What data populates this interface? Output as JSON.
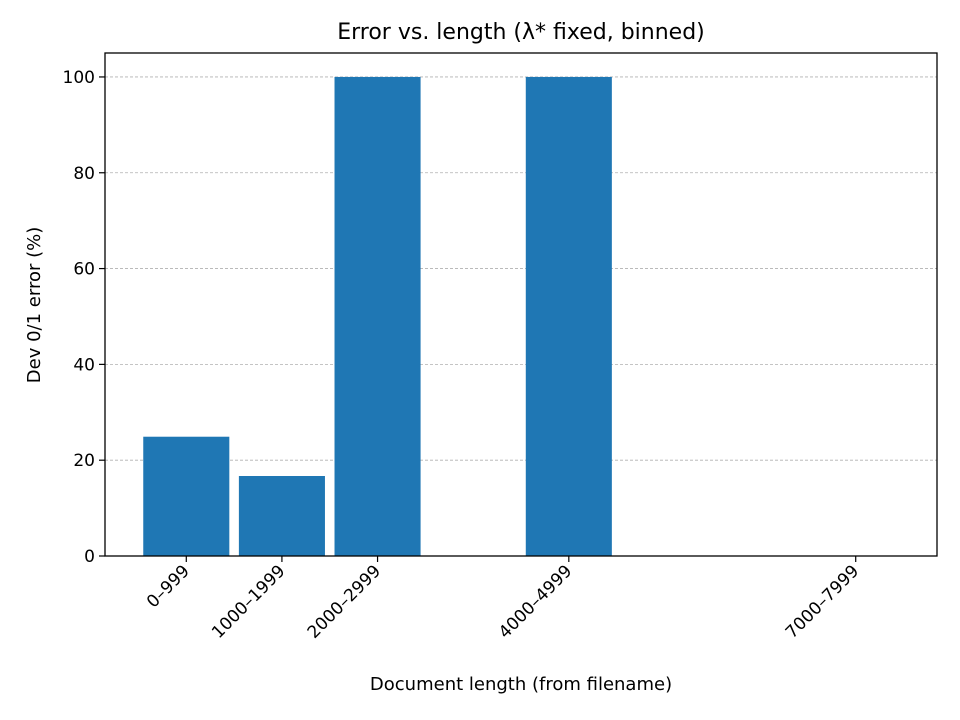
{
  "chart_data": {
    "type": "bar",
    "title": "Error vs. length (λ* fixed, binned)",
    "xlabel": "Document length (from filename)",
    "ylabel": "Dev 0/1 error (%)",
    "bins": [
      {
        "label": "0–999",
        "start": 0,
        "value": 24.9
      },
      {
        "label": "1000–1999",
        "start": 1000,
        "value": 16.7
      },
      {
        "label": "2000–2999",
        "start": 2000,
        "value": 100
      },
      {
        "label": "4000–4999",
        "start": 4000,
        "value": 100
      },
      {
        "label": "7000–7999",
        "start": 7000,
        "value": 0
      }
    ],
    "bin_width": 1000,
    "xlim": [
      -400,
      8300
    ],
    "ylim": [
      0,
      105
    ],
    "yticks": [
      0,
      20,
      40,
      60,
      80,
      100
    ],
    "grid": "y",
    "bar_color": "#1f77b4"
  }
}
